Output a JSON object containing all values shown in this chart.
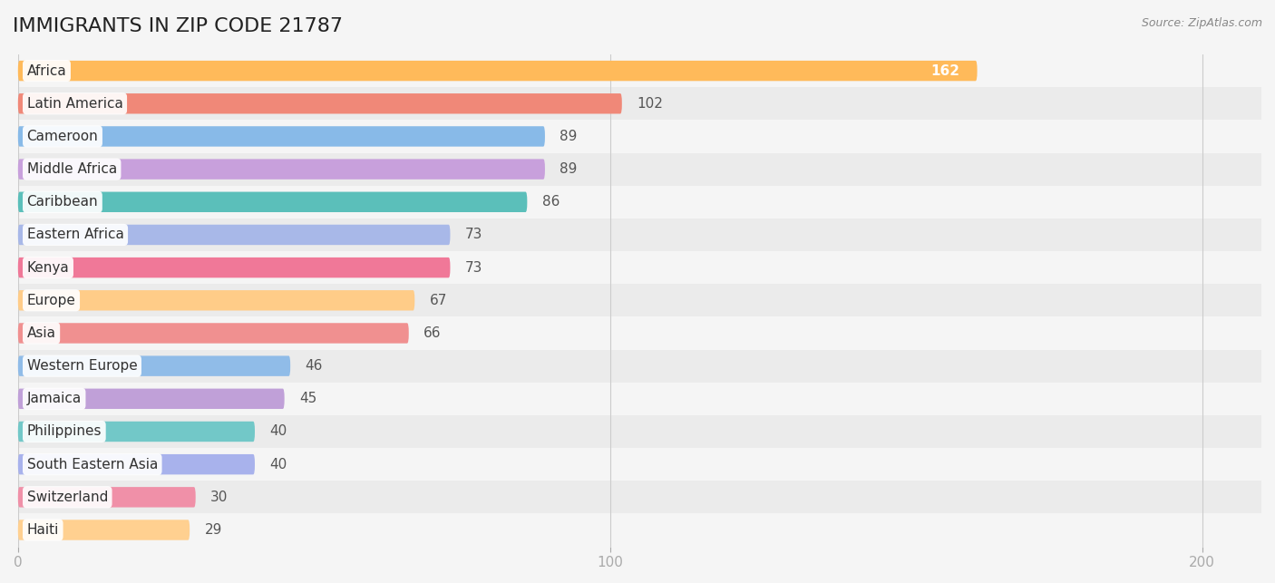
{
  "title": "IMMIGRANTS IN ZIP CODE 21787",
  "source": "Source: ZipAtlas.com",
  "categories": [
    "Africa",
    "Latin America",
    "Cameroon",
    "Middle Africa",
    "Caribbean",
    "Eastern Africa",
    "Kenya",
    "Europe",
    "Asia",
    "Western Europe",
    "Jamaica",
    "Philippines",
    "South Eastern Asia",
    "Switzerland",
    "Haiti"
  ],
  "values": [
    162,
    102,
    89,
    89,
    86,
    73,
    73,
    67,
    66,
    46,
    45,
    40,
    40,
    30,
    29
  ],
  "colors": [
    "#FFBA5A",
    "#F08878",
    "#88BAE8",
    "#C8A0DC",
    "#5BBFBA",
    "#A8B8E8",
    "#F07898",
    "#FFCC88",
    "#F09090",
    "#90BCE8",
    "#C0A0D8",
    "#72C8C8",
    "#A8B2EC",
    "#F090A8",
    "#FFD090"
  ],
  "xlim_max": 210,
  "xticks": [
    0,
    100,
    200
  ],
  "bar_height": 0.62,
  "background_color": "#f5f5f5",
  "title_fontsize": 16,
  "label_fontsize": 11,
  "value_fontsize": 11,
  "africa_value_color": "#ffffff"
}
